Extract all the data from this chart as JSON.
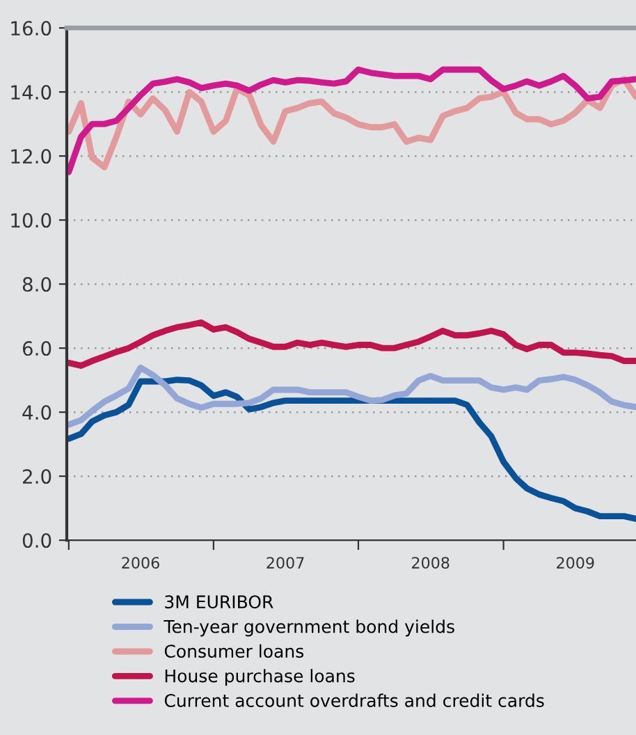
{
  "chart_data": {
    "type": "line",
    "x": [
      "2006-01",
      "2006-02",
      "2006-03",
      "2006-04",
      "2006-05",
      "2006-06",
      "2006-07",
      "2006-08",
      "2006-09",
      "2006-10",
      "2006-11",
      "2006-12",
      "2007-01",
      "2007-02",
      "2007-03",
      "2007-04",
      "2007-05",
      "2007-06",
      "2007-07",
      "2007-08",
      "2007-09",
      "2007-10",
      "2007-11",
      "2007-12",
      "2008-01",
      "2008-02",
      "2008-03",
      "2008-04",
      "2008-05",
      "2008-06",
      "2008-07",
      "2008-08",
      "2008-09",
      "2008-10",
      "2008-11",
      "2008-12",
      "2009-01",
      "2009-02",
      "2009-03",
      "2009-04",
      "2009-05",
      "2009-06",
      "2009-07",
      "2009-08",
      "2009-09",
      "2009-10",
      "2009-11",
      "2009-12"
    ],
    "series": [
      {
        "name": "3M EURIBOR",
        "color": "#0a5298",
        "values": [
          3.17,
          3.32,
          3.71,
          3.9,
          4.0,
          4.23,
          4.96,
          4.96,
          4.96,
          5.01,
          4.99,
          4.84,
          4.51,
          4.62,
          4.48,
          4.09,
          4.16,
          4.29,
          4.36,
          4.36,
          4.36,
          4.36,
          4.36,
          4.36,
          4.36,
          4.36,
          4.36,
          4.36,
          4.36,
          4.36,
          4.36,
          4.36,
          4.36,
          4.23,
          3.68,
          3.25,
          2.45,
          1.94,
          1.62,
          1.43,
          1.32,
          1.22,
          1.0,
          0.9,
          0.75,
          0.75,
          0.75,
          0.67
        ]
      },
      {
        "name": "Ten-year government bond yields",
        "color": "#93a6d6",
        "values": [
          3.61,
          3.75,
          4.04,
          4.33,
          4.52,
          4.74,
          5.39,
          5.16,
          4.84,
          4.43,
          4.26,
          4.14,
          4.26,
          4.26,
          4.26,
          4.29,
          4.43,
          4.7,
          4.7,
          4.7,
          4.62,
          4.62,
          4.62,
          4.62,
          4.48,
          4.36,
          4.38,
          4.52,
          4.58,
          4.99,
          5.13,
          4.99,
          4.99,
          4.99,
          4.99,
          4.77,
          4.7,
          4.77,
          4.7,
          4.99,
          5.03,
          5.1,
          5.01,
          4.84,
          4.62,
          4.33,
          4.22,
          4.16
        ]
      },
      {
        "name": "Consumer loans",
        "color": "#e39a9c",
        "values": [
          12.76,
          13.65,
          11.95,
          11.65,
          12.6,
          13.7,
          13.3,
          13.8,
          13.43,
          12.76,
          14.0,
          13.7,
          12.76,
          13.1,
          14.1,
          13.9,
          12.96,
          12.45,
          13.4,
          13.5,
          13.65,
          13.7,
          13.33,
          13.2,
          12.99,
          12.9,
          12.9,
          12.99,
          12.45,
          12.57,
          12.5,
          13.25,
          13.4,
          13.5,
          13.8,
          13.85,
          14.0,
          13.35,
          13.15,
          13.15,
          12.99,
          13.1,
          13.35,
          13.75,
          13.5,
          14.2,
          14.4,
          13.85
        ]
      },
      {
        "name": "House purchase loans",
        "color": "#c0144c",
        "values": [
          5.54,
          5.45,
          5.6,
          5.74,
          5.88,
          6.0,
          6.19,
          6.4,
          6.54,
          6.65,
          6.72,
          6.8,
          6.58,
          6.65,
          6.5,
          6.29,
          6.17,
          6.04,
          6.04,
          6.17,
          6.1,
          6.17,
          6.1,
          6.04,
          6.1,
          6.1,
          6.0,
          6.0,
          6.1,
          6.2,
          6.36,
          6.54,
          6.4,
          6.4,
          6.46,
          6.54,
          6.43,
          6.1,
          5.97,
          6.1,
          6.1,
          5.86,
          5.86,
          5.83,
          5.78,
          5.75,
          5.6,
          5.6
        ]
      },
      {
        "name": "Current account overdrafts and credit cards",
        "color": "#cf1a8e",
        "values": [
          11.5,
          12.6,
          13.0,
          13.0,
          13.1,
          13.5,
          13.9,
          14.26,
          14.32,
          14.4,
          14.3,
          14.12,
          14.2,
          14.26,
          14.2,
          14.04,
          14.23,
          14.37,
          14.3,
          14.37,
          14.35,
          14.3,
          14.26,
          14.33,
          14.7,
          14.6,
          14.55,
          14.5,
          14.5,
          14.5,
          14.4,
          14.7,
          14.7,
          14.7,
          14.7,
          14.36,
          14.09,
          14.2,
          14.33,
          14.2,
          14.33,
          14.5,
          14.2,
          13.8,
          13.85,
          14.33,
          14.36,
          14.4
        ]
      }
    ],
    "xlim": [
      "2005-12-27",
      "2009-12-01"
    ],
    "xticks": [
      {
        "value": "2006-01-01",
        "label": null
      },
      {
        "value": "2006-07-01",
        "label": "2006"
      },
      {
        "value": "2007-01-01",
        "label": null
      },
      {
        "value": "2007-07-01",
        "label": "2007"
      },
      {
        "value": "2008-01-01",
        "label": null
      },
      {
        "value": "2008-07-01",
        "label": "2008"
      },
      {
        "value": "2009-01-01",
        "label": null
      },
      {
        "value": "2009-07-01",
        "label": "2009"
      }
    ],
    "ylim": [
      0,
      16
    ],
    "yticks": [
      {
        "value": 0,
        "label": "0.0"
      },
      {
        "value": 2,
        "label": "2.0"
      },
      {
        "value": 4,
        "label": "4.0"
      },
      {
        "value": 6,
        "label": "6.0"
      },
      {
        "value": 8,
        "label": "8.0"
      },
      {
        "value": 10,
        "label": "10.0"
      },
      {
        "value": 12,
        "label": "12.0"
      },
      {
        "value": 14,
        "label": "14.0"
      },
      {
        "value": 16,
        "label": "16.0"
      }
    ],
    "grid": "y",
    "legend": "bottom",
    "marker": "none",
    "line_style": "solid"
  }
}
